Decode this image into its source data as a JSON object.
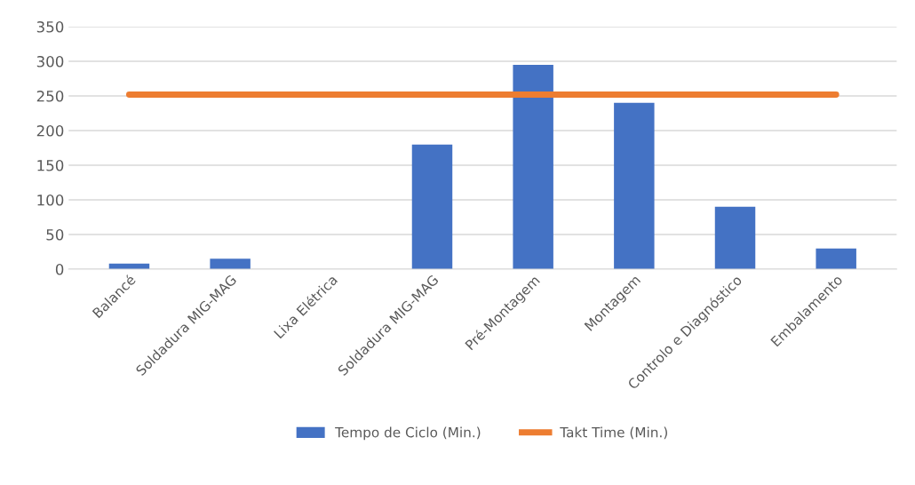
{
  "chart_data": {
    "type": "bar",
    "categories": [
      "Balancé",
      "Soldadura MIG-MAG",
      "Lixa Elétrica",
      "Soldadura MIG-MAG",
      "Pré-Montagem",
      "Montagem",
      "Controlo e Diagnóstico",
      "Embalamento"
    ],
    "series": [
      {
        "name": "Tempo de Ciclo (Min.)",
        "color": "#4472c4",
        "values": [
          8,
          15,
          0,
          180,
          295,
          240,
          90,
          30
        ]
      },
      {
        "name": "Takt Time (Min.)",
        "color": "#ed7d31",
        "type": "line",
        "values": [
          252,
          252,
          252,
          252,
          252,
          252,
          252,
          252
        ]
      }
    ],
    "ylim": [
      0,
      350
    ],
    "yticks": [
      0,
      50,
      100,
      150,
      200,
      250,
      300,
      350
    ],
    "grid": "y",
    "legend": "bottom",
    "marker": "none",
    "line_style": "solid"
  }
}
